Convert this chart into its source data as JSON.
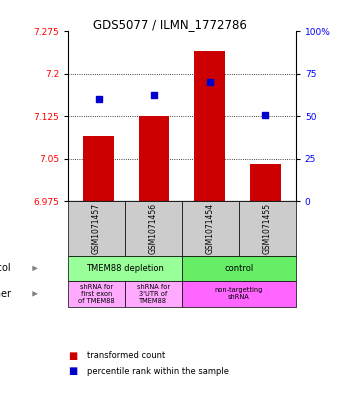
{
  "title": "GDS5077 / ILMN_1772786",
  "samples": [
    "GSM1071457",
    "GSM1071456",
    "GSM1071454",
    "GSM1071455"
  ],
  "bar_values": [
    7.09,
    7.125,
    7.24,
    7.04
  ],
  "bar_bottom": 6.975,
  "percentile_values": [
    7.155,
    7.163,
    7.185,
    7.128
  ],
  "ylim": [
    6.975,
    7.275
  ],
  "yticks_left": [
    7.275,
    7.2,
    7.125,
    7.05,
    6.975
  ],
  "yticks_right": [
    100,
    75,
    50,
    25,
    0
  ],
  "bar_color": "#cc0000",
  "dot_color": "#0000cc",
  "gridlines": [
    7.2,
    7.125,
    7.05
  ],
  "proto_labels": [
    "TMEM88 depletion",
    "control"
  ],
  "proto_spans": [
    2,
    2
  ],
  "proto_colors": [
    "#99ff99",
    "#66ee66"
  ],
  "other_labels": [
    "shRNA for\nfirst exon\nof TMEM88",
    "shRNA for\n3'UTR of\nTMEM88",
    "non-targetting\nshRNA"
  ],
  "other_spans": [
    1,
    1,
    2
  ],
  "other_colors": [
    "#ffaaff",
    "#ffaaff",
    "#ff66ff"
  ],
  "legend_red": "transformed count",
  "legend_blue": "percentile rank within the sample",
  "bg_color": "#ffffff",
  "sample_row_color": "#cccccc"
}
